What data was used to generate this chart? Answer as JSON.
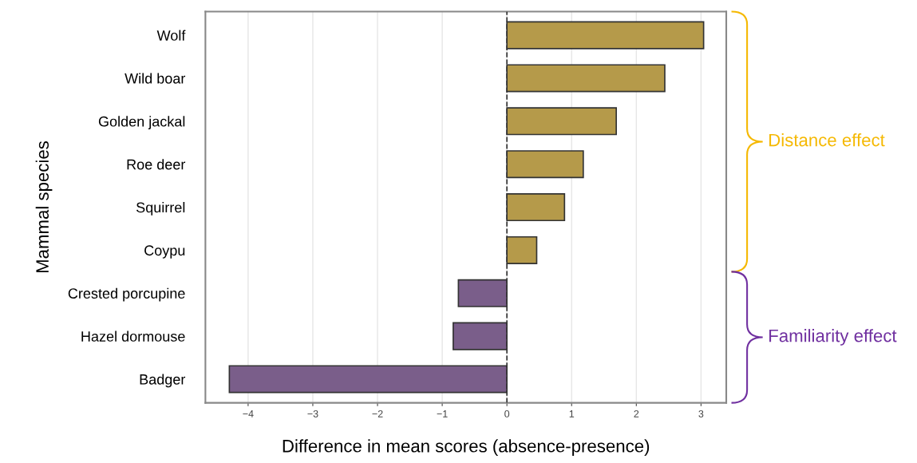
{
  "chart_data": {
    "type": "bar",
    "orientation": "horizontal",
    "categories": [
      "Wolf",
      "Wild boar",
      "Golden jackal",
      "Roe deer",
      "Squirrel",
      "Coypu",
      "Crested porcupine",
      "Hazel dormouse",
      "Badger"
    ],
    "values": [
      3.04,
      2.44,
      1.69,
      1.18,
      0.89,
      0.46,
      -0.75,
      -0.83,
      -4.29
    ],
    "colors": [
      "#b59a4a",
      "#b59a4a",
      "#b59a4a",
      "#b59a4a",
      "#b59a4a",
      "#b59a4a",
      "#7a5e8a",
      "#7a5e8a",
      "#7a5e8a"
    ],
    "xlim": [
      -4.66,
      3.39
    ],
    "xticks": [
      {
        "value": -4,
        "label": "−4"
      },
      {
        "value": -3,
        "label": "−3"
      },
      {
        "value": -2,
        "label": "−2"
      },
      {
        "value": -1,
        "label": "−1"
      },
      0,
      1,
      2,
      3
    ],
    "xlabel": "Difference in mean scores (absence-presence)",
    "ylabel": "Mammal species",
    "grid": "x",
    "ref_lines": [
      {
        "axis": "x",
        "value": 0,
        "line_style": "dashed",
        "color": "#333333"
      }
    ],
    "annotations": [
      "Distance effect",
      "Familiarity effect"
    ]
  }
}
